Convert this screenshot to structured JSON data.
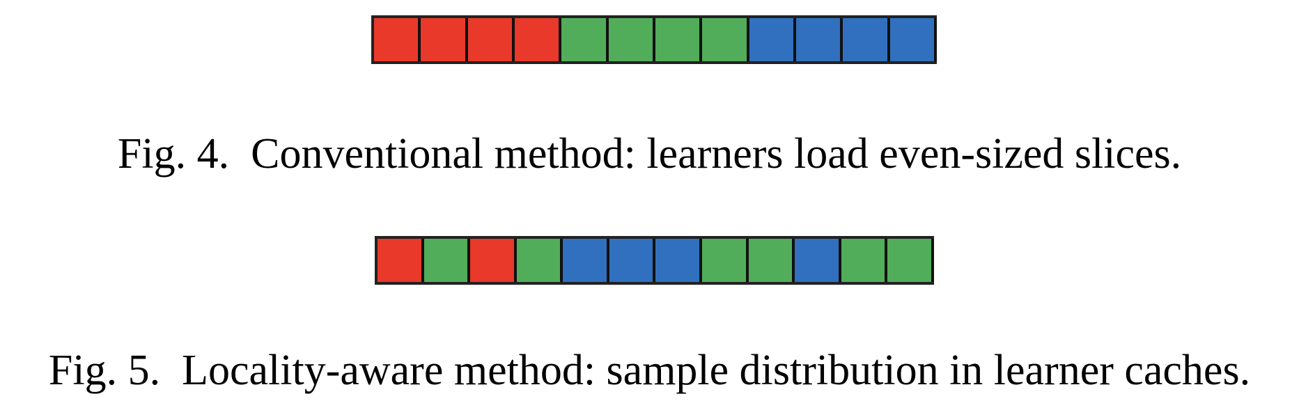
{
  "colors": {
    "red": "#e8392a",
    "green": "#52ad5a",
    "blue": "#3170be",
    "border": "#111111"
  },
  "fig4": {
    "cells": [
      "red",
      "red",
      "red",
      "red",
      "green",
      "green",
      "green",
      "green",
      "blue",
      "blue",
      "blue",
      "blue"
    ],
    "label": "Fig. 4.",
    "text": "Conventional method: learners load even-sized slices."
  },
  "fig5": {
    "cells": [
      "red",
      "green",
      "red",
      "green",
      "blue",
      "blue",
      "blue",
      "green",
      "green",
      "blue",
      "green",
      "green"
    ],
    "label": "Fig. 5.",
    "text": "Locality-aware method: sample distribution in learner caches."
  }
}
